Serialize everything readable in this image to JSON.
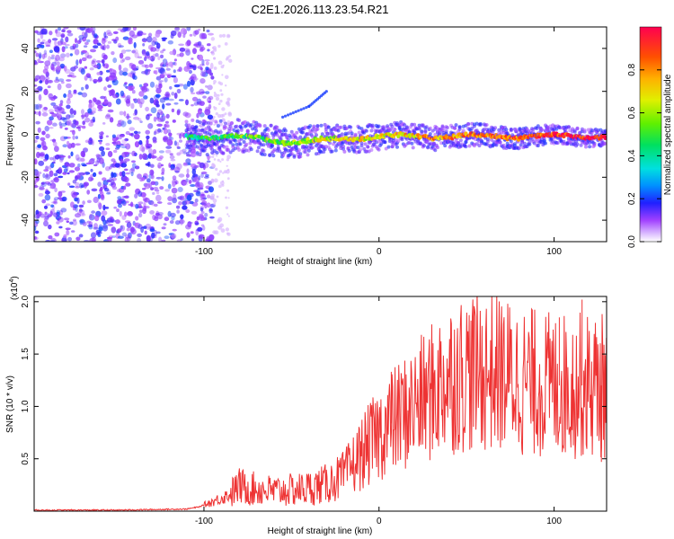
{
  "chart_data": [
    {
      "type": "heatmap",
      "title": "C2E1.2026.113.23.54.R21",
      "xlabel": "Height of straight line (km)",
      "ylabel": "Frequency (Hz)",
      "xlim": [
        -197,
        130
      ],
      "ylim": [
        -50,
        50
      ],
      "xticks": [
        -100,
        0,
        100
      ],
      "xtick_labels": [
        "-100",
        "0",
        "100"
      ],
      "yticks": [
        -40,
        -20,
        0,
        20,
        40
      ],
      "ytick_labels": [
        "-40",
        "-20",
        "0",
        "20",
        "40"
      ],
      "colorbar": {
        "label": "Normalized spectral amplitude",
        "range": [
          0,
          1
        ],
        "ticks": [
          0.0,
          0.2,
          0.4,
          0.6,
          0.8
        ],
        "tick_labels": [
          "0.0",
          "0.2",
          "0.4",
          "0.6",
          "0.8"
        ]
      },
      "features": [
        {
          "name": "noise-region",
          "x_range": [
            -197,
            -95
          ],
          "frequency_range": [
            -50,
            50
          ],
          "amplitude": 0.25
        },
        {
          "name": "signal-band",
          "x_range": [
            -110,
            130
          ],
          "frequency_center": -1,
          "amplitude_start": 0.4,
          "amplitude_end": 0.95
        },
        {
          "name": "side-streak",
          "x": [
            -55,
            -40,
            -30
          ],
          "frequency": [
            8,
            13,
            20
          ],
          "amplitude": 0.2
        }
      ]
    },
    {
      "type": "line",
      "xlabel": "Height of straight line (km)",
      "ylabel": "SNR (10 * v/v)",
      "scale_label": "(x10",
      "scale_exponent": "4",
      "scale_suffix": ")",
      "xlim": [
        -197,
        130
      ],
      "ylim": [
        0,
        2.05
      ],
      "xticks": [
        -100,
        0,
        100
      ],
      "xtick_labels": [
        "-100",
        "0",
        "100"
      ],
      "yticks": [
        0.5,
        1.0,
        1.5,
        2.0
      ],
      "ytick_labels": [
        "0.5",
        "1.0",
        "1.5",
        "2.0"
      ],
      "series": [
        {
          "name": "SNR",
          "color": "#ee3333",
          "x": [
            -197,
            -150,
            -110,
            -103,
            -95,
            -85,
            -80,
            -75,
            -70,
            -60,
            -50,
            -40,
            -30,
            -20,
            -10,
            0,
            10,
            20,
            30,
            40,
            50,
            60,
            70,
            80,
            90,
            100,
            110,
            120,
            130
          ],
          "y": [
            0.01,
            0.01,
            0.02,
            0.04,
            0.09,
            0.16,
            0.24,
            0.22,
            0.21,
            0.19,
            0.2,
            0.22,
            0.26,
            0.34,
            0.55,
            0.74,
            0.88,
            1.0,
            1.13,
            1.28,
            1.33,
            1.34,
            1.31,
            1.26,
            1.22,
            1.2,
            1.2,
            1.2,
            1.2
          ]
        }
      ],
      "spikes": [
        {
          "x": 7,
          "y": 1.33
        },
        {
          "x": 116,
          "y": 2.02
        },
        {
          "x": 103,
          "y": 1.85
        },
        {
          "x": 127,
          "y": 0.47
        }
      ]
    }
  ],
  "colors": {
    "line": "#ee3333",
    "axis": "#000000",
    "noise": "#7722ee"
  }
}
